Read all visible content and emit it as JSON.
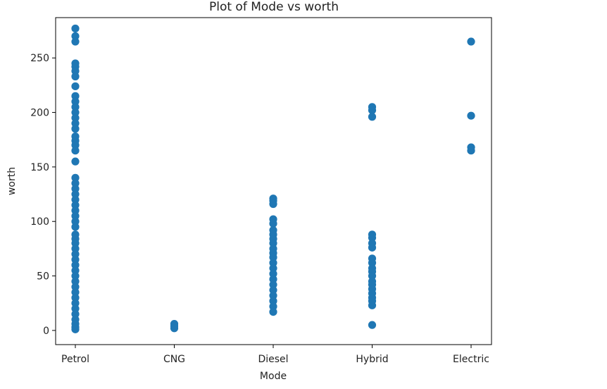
{
  "chart_data": {
    "type": "scatter",
    "title": "Plot of Mode vs worth",
    "xlabel": "Mode",
    "ylabel": "worth",
    "categories": [
      "Petrol",
      "CNG",
      "Diesel",
      "Hybrid",
      "Electric"
    ],
    "ylim": [
      -13,
      287
    ],
    "yticks": [
      0,
      50,
      100,
      150,
      200,
      250
    ],
    "ytick_labels": [
      "0",
      "50",
      "100",
      "150",
      "200",
      "250"
    ],
    "grid": false,
    "legend": "none",
    "marker_color": "#1f77b4",
    "series": [
      {
        "values": [
          [
            0,
            277
          ],
          [
            0,
            270
          ],
          [
            0,
            265
          ],
          [
            0,
            245
          ],
          [
            0,
            242
          ],
          [
            0,
            238
          ],
          [
            0,
            233
          ],
          [
            0,
            224
          ],
          [
            0,
            215
          ],
          [
            0,
            210
          ],
          [
            0,
            205
          ],
          [
            0,
            200
          ],
          [
            0,
            195
          ],
          [
            0,
            190
          ],
          [
            0,
            185
          ],
          [
            0,
            178
          ],
          [
            0,
            174
          ],
          [
            0,
            170
          ],
          [
            0,
            165
          ],
          [
            0,
            155
          ],
          [
            0,
            140
          ],
          [
            0,
            135
          ],
          [
            0,
            130
          ],
          [
            0,
            125
          ],
          [
            0,
            120
          ],
          [
            0,
            115
          ],
          [
            0,
            110
          ],
          [
            0,
            105
          ],
          [
            0,
            100
          ],
          [
            0,
            95
          ],
          [
            0,
            88
          ],
          [
            0,
            84
          ],
          [
            0,
            80
          ],
          [
            0,
            75
          ],
          [
            0,
            70
          ],
          [
            0,
            65
          ],
          [
            0,
            60
          ],
          [
            0,
            55
          ],
          [
            0,
            50
          ],
          [
            0,
            45
          ],
          [
            0,
            40
          ],
          [
            0,
            35
          ],
          [
            0,
            30
          ],
          [
            0,
            25
          ],
          [
            0,
            20
          ],
          [
            0,
            15
          ],
          [
            0,
            10
          ],
          [
            0,
            6
          ],
          [
            0,
            3
          ],
          [
            0,
            1
          ],
          [
            1,
            6
          ],
          [
            1,
            4
          ],
          [
            1,
            2
          ],
          [
            2,
            121
          ],
          [
            2,
            119
          ],
          [
            2,
            116
          ],
          [
            2,
            102
          ],
          [
            2,
            98
          ],
          [
            2,
            92
          ],
          [
            2,
            88
          ],
          [
            2,
            84
          ],
          [
            2,
            80
          ],
          [
            2,
            75
          ],
          [
            2,
            71
          ],
          [
            2,
            67
          ],
          [
            2,
            62
          ],
          [
            2,
            57
          ],
          [
            2,
            52
          ],
          [
            2,
            47
          ],
          [
            2,
            42
          ],
          [
            2,
            37
          ],
          [
            2,
            32
          ],
          [
            2,
            27
          ],
          [
            2,
            22
          ],
          [
            2,
            17
          ],
          [
            3,
            205
          ],
          [
            3,
            202
          ],
          [
            3,
            196
          ],
          [
            3,
            88
          ],
          [
            3,
            85
          ],
          [
            3,
            80
          ],
          [
            3,
            76
          ],
          [
            3,
            66
          ],
          [
            3,
            62
          ],
          [
            3,
            57
          ],
          [
            3,
            54
          ],
          [
            3,
            50
          ],
          [
            3,
            45
          ],
          [
            3,
            42
          ],
          [
            3,
            38
          ],
          [
            3,
            34
          ],
          [
            3,
            30
          ],
          [
            3,
            27
          ],
          [
            3,
            23
          ],
          [
            3,
            5
          ],
          [
            4,
            265
          ],
          [
            4,
            197
          ],
          [
            4,
            168
          ],
          [
            4,
            165
          ]
        ]
      }
    ]
  }
}
